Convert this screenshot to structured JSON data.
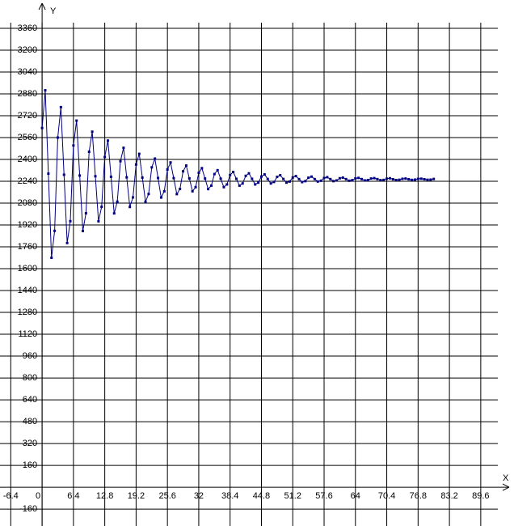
{
  "chart_data": {
    "type": "line",
    "x_label": "X",
    "y_label": "Y",
    "xlim": [
      -8.6,
      95.4
    ],
    "ylim": [
      -272,
      3508
    ],
    "xticks": [
      -6.4,
      0,
      6.4,
      12.8,
      19.2,
      25.6,
      32,
      38.4,
      44.8,
      51.2,
      57.6,
      64,
      70.4,
      76.8,
      83.2,
      89.6
    ],
    "yticks": [
      -160,
      160,
      320,
      480,
      640,
      800,
      960,
      1120,
      1280,
      1440,
      1600,
      1760,
      1920,
      2080,
      2240,
      2400,
      2560,
      2720,
      2880,
      3040,
      3200,
      3360
    ],
    "grid": true,
    "x": [
      0,
      0.64,
      1.28,
      1.92,
      2.56,
      3.2,
      3.84,
      4.48,
      5.12,
      5.76,
      6.4,
      7.04,
      7.68,
      8.32,
      8.96,
      9.6,
      10.24,
      10.88,
      11.52,
      12.16,
      12.8,
      13.44,
      14.08,
      14.72,
      15.36,
      16,
      16.64,
      17.28,
      17.92,
      18.56,
      19.2,
      19.84,
      20.48,
      21.12,
      21.76,
      22.4,
      23.04,
      23.68,
      24.32,
      24.96,
      25.6,
      26.24,
      26.88,
      27.52,
      28.16,
      28.8,
      29.44,
      30.08,
      30.72,
      31.36,
      32,
      32.64,
      33.28,
      33.92,
      34.56,
      35.2,
      35.84,
      36.48,
      37.12,
      37.76,
      38.4,
      39.04,
      39.68,
      40.32,
      40.96,
      41.6,
      42.24,
      42.88,
      43.52,
      44.16,
      44.8,
      45.44,
      46.08,
      46.72,
      47.36,
      48,
      48.64,
      49.28,
      49.92,
      50.56,
      51.2,
      51.84,
      52.48,
      53.12,
      53.76,
      54.4,
      55.04,
      55.68,
      56.32,
      56.96,
      57.6,
      58.24,
      58.88,
      59.52,
      60.16,
      60.8,
      61.44,
      62.08,
      62.72,
      63.36,
      64,
      64.64,
      65.28,
      65.92,
      66.56,
      67.2,
      67.84,
      68.48,
      69.12,
      69.76,
      70.4,
      71.04,
      71.68,
      72.32,
      72.96,
      73.6,
      74.24,
      74.88,
      75.52,
      76.16,
      76.8,
      77.44,
      78.08,
      78.72,
      79.36,
      80
    ],
    "series": [
      {
        "color": "#000080",
        "values": [
          2630,
          2906,
          2296,
          1680,
          1877,
          2560,
          2783,
          2288,
          1788,
          1948,
          2502,
          2684,
          2282,
          1876,
          2006,
          2456,
          2603,
          2277,
          1947,
          2053,
          2418,
          2538,
          2273,
          2005,
          2091,
          2387,
          2485,
          2269,
          2052,
          2122,
          2363,
          2441,
          2267,
          2090,
          2147,
          2342,
          2406,
          2264,
          2121,
          2167,
          2326,
          2378,
          2263,
          2146,
          2184,
          2313,
          2355,
          2261,
          2167,
          2197,
          2302,
          2336,
          2260,
          2183,
          2208,
          2293,
          2321,
          2259,
          2197,
          2217,
          2286,
          2308,
          2258,
          2208,
          2224,
          2280,
          2298,
          2258,
          2217,
          2230,
          2275,
          2290,
          2257,
          2224,
          2235,
          2272,
          2284,
          2257,
          2230,
          2238,
          2268,
          2278,
          2256,
          2234,
          2241,
          2266,
          2274,
          2256,
          2238,
          2244,
          2264,
          2270,
          2256,
          2241,
          2246,
          2262,
          2267,
          2256,
          2244,
          2248,
          2261,
          2265,
          2256,
          2246,
          2249,
          2260,
          2263,
          2256,
          2248,
          2250,
          2259,
          2262,
          2255,
          2249,
          2251,
          2258,
          2260,
          2255,
          2250,
          2252,
          2258,
          2259,
          2255,
          2251,
          2252,
          2257
        ]
      }
    ]
  }
}
